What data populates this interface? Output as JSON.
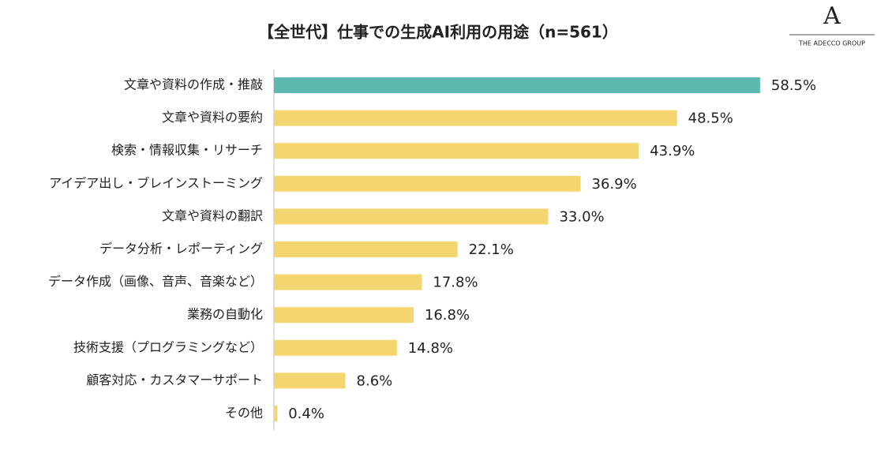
{
  "chart_data": {
    "type": "barh",
    "title": "【全世代】仕事での生成AI利用の用途（n=561）",
    "logo": {
      "mark": "A",
      "text": "THE ADECCO GROUP"
    },
    "categories": [
      "文章や資料の作成・推敲",
      "文章や資料の要約",
      "検索・情報収集・リサーチ",
      "アイデア出し・ブレインストーミング",
      "文章や資料の翻訳",
      "データ分析・レポーティング",
      "データ作成（画像、音声、音楽など）",
      "業務の自動化",
      "技術支援（プログラミングなど）",
      "顧客対応・カスタマーサポート",
      "その他"
    ],
    "values": [
      58.5,
      48.5,
      43.9,
      36.9,
      33.0,
      22.1,
      17.8,
      16.8,
      14.8,
      8.6,
      0.4
    ],
    "value_labels": [
      "58.5%",
      "48.5%",
      "43.9%",
      "36.9%",
      "33.0%",
      "22.1%",
      "17.8%",
      "16.8%",
      "14.8%",
      "8.6%",
      "0.4%"
    ],
    "colors": [
      "#5db9ae",
      "#f5d56f",
      "#f5d56f",
      "#f5d56f",
      "#f5d56f",
      "#f5d56f",
      "#f5d56f",
      "#f5d56f",
      "#f5d56f",
      "#f5d56f",
      "#f5d56f"
    ],
    "xlim": [
      0,
      70
    ]
  }
}
